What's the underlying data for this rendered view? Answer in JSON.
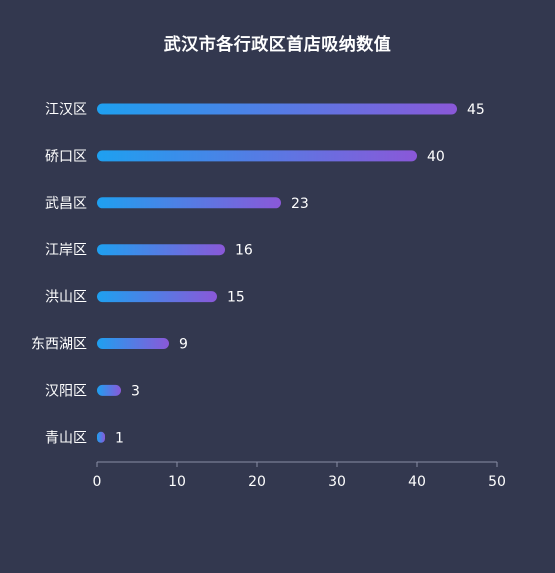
{
  "chart_data": {
    "type": "bar",
    "orientation": "horizontal",
    "title": "武汉市各行政区首店吸纳数值",
    "categories": [
      "江汉区",
      "硚口区",
      "武昌区",
      "江岸区",
      "洪山区",
      "东西湖区",
      "汉阳区",
      "青山区"
    ],
    "values": [
      45,
      40,
      23,
      16,
      15,
      9,
      3,
      1
    ],
    "xlim": [
      0,
      50
    ],
    "xticks": [
      "0",
      "10",
      "20",
      "30",
      "40",
      "50"
    ],
    "grid": false,
    "legend": "none",
    "colors": {
      "background": "#33384f",
      "bar_start": "#1ea0f0",
      "bar_end": "#8a58d8",
      "axis": "#8a8ea6",
      "text": "#ffffff"
    }
  }
}
